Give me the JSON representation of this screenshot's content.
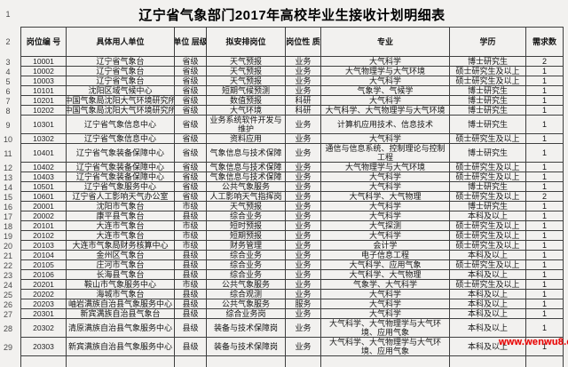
{
  "title": "辽宁省气象部门2017年高校毕业生接收计划明细表",
  "watermark": "www.wenwu8.c",
  "gutter": {
    "title_row": "1",
    "header_row": "2"
  },
  "colors": {
    "border": "#3f3f3f",
    "background": "#f2f1ef",
    "watermark_red": "#e80505",
    "text": "#161616"
  },
  "table": {
    "columns": [
      "岗位编\n号",
      "具体用人单位",
      "单位\n层级",
      "拟安排岗位",
      "岗位性\n质",
      "专业",
      "学历",
      "需求数"
    ],
    "rows": [
      {
        "n": "3",
        "cells": [
          "10001",
          "辽宁省气象台",
          "省级",
          "天气预报",
          "业务",
          "大气科学",
          "博士研究生",
          "2"
        ]
      },
      {
        "n": "4",
        "cells": [
          "10002",
          "辽宁省气象台",
          "省级",
          "天气预报",
          "业务",
          "大气物理学与大气环境",
          "硕士研究生及以上",
          "1"
        ]
      },
      {
        "n": "5",
        "cells": [
          "10003",
          "辽宁省气象台",
          "省级",
          "天气预报",
          "业务",
          "大气科学",
          "硕士研究生及以上",
          "1"
        ]
      },
      {
        "n": "6",
        "cells": [
          "10101",
          "沈阳区域气候中心",
          "省级",
          "短期气候预测",
          "业务",
          "气象学、气候学",
          "博士研究生",
          "1"
        ]
      },
      {
        "n": "7",
        "cells": [
          "10201",
          "中国气象局沈阳大气环境研究所",
          "省级",
          "数值预报",
          "科研",
          "大气科学",
          "博士研究生",
          "1"
        ]
      },
      {
        "n": "8",
        "cells": [
          "10202",
          "中国气象局沈阳大气环境研究所",
          "省级",
          "大气环境",
          "科研",
          "大气科学、大气物理学与大气环境",
          "博士研究生",
          "1"
        ]
      },
      {
        "n": "9",
        "cells": [
          "10301",
          "辽宁省气象信息中心",
          "省级",
          "业务系统软件开发与维护",
          "业务",
          "计算机应用技术、信息技术",
          "博士研究生",
          "1"
        ]
      },
      {
        "n": "10",
        "cells": [
          "10302",
          "辽宁省气象信息中心",
          "省级",
          "资料应用",
          "业务",
          "大气科学",
          "硕士研究生及以上",
          "1"
        ]
      },
      {
        "n": "11",
        "cells": [
          "10401",
          "辽宁省气象装备保障中心",
          "省级",
          "气象信息与技术保障",
          "业务",
          "通信与信息系统、控制理论与控制工程",
          "博士研究生",
          "1"
        ]
      },
      {
        "n": "12",
        "cells": [
          "10402",
          "辽宁省气象装备保障中心",
          "省级",
          "气象信息与技术保障",
          "业务",
          "大气物理学与大气环境",
          "硕士研究生及以上",
          "1"
        ]
      },
      {
        "n": "13",
        "cells": [
          "10403",
          "辽宁省气象装备保障中心",
          "省级",
          "气象信息与技术保障",
          "业务",
          "大气科学",
          "硕士研究生及以上",
          "1"
        ]
      },
      {
        "n": "14",
        "cells": [
          "10501",
          "辽宁省气象服务中心",
          "省级",
          "公共气象服务",
          "业务",
          "大气科学",
          "博士研究生",
          "1"
        ]
      },
      {
        "n": "15",
        "cells": [
          "10601",
          "辽宁省人工影响天气办公室",
          "省级",
          "人工影响天气指挥岗",
          "业务",
          "大气科学、大气物理",
          "硕士研究生及以上",
          "2"
        ]
      },
      {
        "n": "16",
        "cells": [
          "20001",
          "沈阳市气象台",
          "市级",
          "天气预报",
          "业务",
          "大气科学",
          "博士研究生",
          "1"
        ]
      },
      {
        "n": "17",
        "cells": [
          "20002",
          "康平县气象台",
          "县级",
          "综合业务",
          "业务",
          "大气科学",
          "本科及以上",
          "1"
        ]
      },
      {
        "n": "18",
        "cells": [
          "20101",
          "大连市气象台",
          "市级",
          "短时预报",
          "业务",
          "大气探测",
          "硕士研究生及以上",
          "1"
        ]
      },
      {
        "n": "19",
        "cells": [
          "20102",
          "大连市气象台",
          "市级",
          "短期预报",
          "业务",
          "大气科学",
          "硕士研究生及以上",
          "1"
        ]
      },
      {
        "n": "20",
        "cells": [
          "20103",
          "大连市气象局财务核算中心",
          "市级",
          "财务管理",
          "业务",
          "会计学",
          "硕士研究生及以上",
          "1"
        ]
      },
      {
        "n": "21",
        "cells": [
          "20104",
          "金州区气象台",
          "县级",
          "综合业务",
          "业务",
          "电子信息工程",
          "本科及以上",
          "1"
        ]
      },
      {
        "n": "22",
        "cells": [
          "20105",
          "庄河市气象台",
          "县级",
          "综合业务",
          "业务",
          "大气科学、应用气象",
          "硕士研究生及以上",
          "1"
        ]
      },
      {
        "n": "23",
        "cells": [
          "20106",
          "长海县气象台",
          "县级",
          "综合业务",
          "业务",
          "大气科学、大气物理",
          "本科及以上",
          "1"
        ]
      },
      {
        "n": "24",
        "cells": [
          "20201",
          "鞍山市气象服务中心",
          "市级",
          "公共气象服务",
          "业务",
          "气象学、大气科学",
          "硕士研究生及以上",
          "1"
        ]
      },
      {
        "n": "25",
        "cells": [
          "20202",
          "海城市气象台",
          "县级",
          "综合观测",
          "业务",
          "大气科学",
          "本科及以上",
          "1"
        ]
      },
      {
        "n": "26",
        "cells": [
          "20203",
          "岫岩满族自治县气象服务中心",
          "县级",
          "公共气象服务",
          "服务",
          "大气科学",
          "本科及以上",
          "1"
        ]
      },
      {
        "n": "27",
        "cells": [
          "20301",
          "新宾满族自治县气象台",
          "县级",
          "综合业务岗",
          "业务",
          "大气科学",
          "本科及以上",
          "1"
        ]
      },
      {
        "n": "28",
        "cells": [
          "20302",
          "清原满族自治县气象服务中心",
          "县级",
          "装备与技术保障岗",
          "业务",
          "大气科学、大气物理学与大气环境、应用气象",
          "本科及以上",
          "1"
        ]
      },
      {
        "n": "29",
        "cells": [
          "20303",
          "新宾满族自治县气象服务中心",
          "县级",
          "装备与技术保障岗",
          "业务",
          "大气科学、大气物理学与大气环境、应用气象",
          "本科及以上",
          "1"
        ]
      }
    ]
  }
}
